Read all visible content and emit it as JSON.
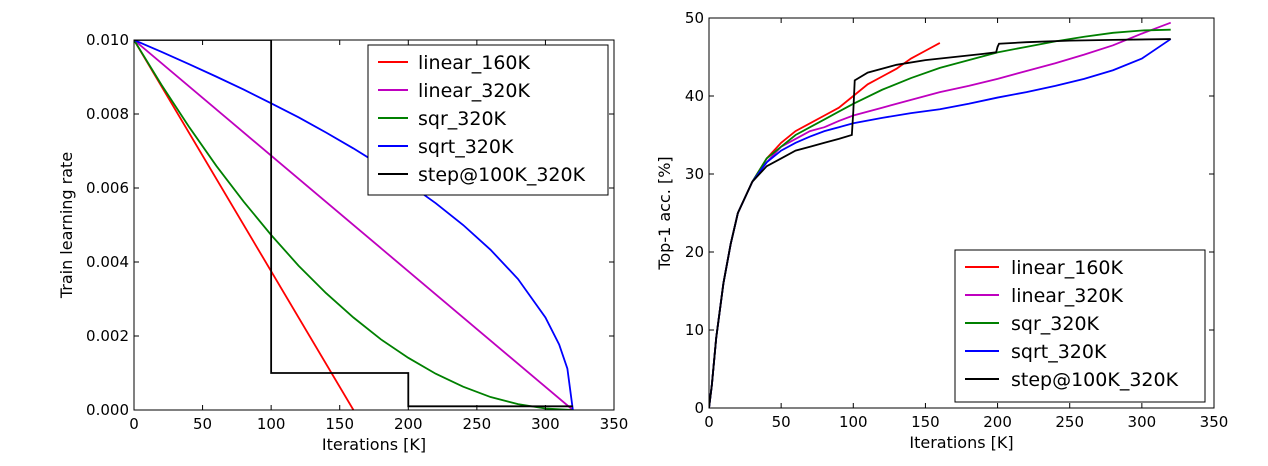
{
  "chart_data": [
    {
      "type": "line",
      "xlabel": "Iterations [K]",
      "ylabel": "Train learning rate",
      "xlim": [
        0,
        350
      ],
      "ylim": [
        0,
        0.01
      ],
      "xticks": [
        0,
        50,
        100,
        150,
        200,
        250,
        300,
        350
      ],
      "yticks": [
        0.0,
        0.002,
        0.004,
        0.006,
        0.008,
        0.01
      ],
      "xtick_labels": [
        "0",
        "50",
        "100",
        "150",
        "200",
        "250",
        "300",
        "350"
      ],
      "ytick_labels": [
        "0.000",
        "0.002",
        "0.004",
        "0.006",
        "0.008",
        "0.010"
      ],
      "grid": false,
      "legend_position": "top-right",
      "series": [
        {
          "name": "linear_160K",
          "color": "#ff0000",
          "x": [
            0,
            160
          ],
          "y": [
            0.01,
            0.0
          ]
        },
        {
          "name": "linear_320K",
          "color": "#bf00bf",
          "x": [
            0,
            320
          ],
          "y": [
            0.01,
            0.0
          ]
        },
        {
          "name": "sqr_320K",
          "color": "#008000",
          "x": [
            0,
            20,
            40,
            60,
            80,
            100,
            120,
            140,
            160,
            180,
            200,
            220,
            240,
            260,
            280,
            300,
            320
          ],
          "y": [
            0.01,
            0.00879,
            0.00766,
            0.0066,
            0.00563,
            0.00473,
            0.0039,
            0.00316,
            0.0025,
            0.00191,
            0.00141,
            0.00098,
            0.00063,
            0.00035,
            0.00016,
            4e-05,
            0.0
          ]
        },
        {
          "name": "sqrt_320K",
          "color": "#0000ff",
          "x": [
            0,
            20,
            40,
            60,
            80,
            100,
            120,
            140,
            160,
            180,
            200,
            220,
            240,
            260,
            280,
            300,
            310,
            316,
            320
          ],
          "y": [
            0.01,
            0.00968,
            0.00935,
            0.00901,
            0.00866,
            0.00829,
            0.00791,
            0.0075,
            0.00707,
            0.00661,
            0.00612,
            0.00559,
            0.005,
            0.00433,
            0.00354,
            0.0025,
            0.00177,
            0.00112,
            0.0
          ]
        },
        {
          "name": "step@100K_320K",
          "color": "#000000",
          "x": [
            0,
            100,
            100,
            200,
            200,
            320
          ],
          "y": [
            0.01,
            0.01,
            0.001,
            0.001,
            0.0001,
            0.0001
          ]
        }
      ]
    },
    {
      "type": "line",
      "xlabel": "Iterations [K]",
      "ylabel": "Top-1 acc. [%]",
      "xlim": [
        0,
        350
      ],
      "ylim": [
        0,
        50
      ],
      "xticks": [
        0,
        50,
        100,
        150,
        200,
        250,
        300,
        350
      ],
      "yticks": [
        0,
        10,
        20,
        30,
        40,
        50
      ],
      "xtick_labels": [
        "0",
        "50",
        "100",
        "150",
        "200",
        "250",
        "300",
        "350"
      ],
      "ytick_labels": [
        "0",
        "10",
        "20",
        "30",
        "40",
        "50"
      ],
      "grid": false,
      "legend_position": "bottom-right",
      "series": [
        {
          "name": "linear_160K",
          "color": "#ff0000",
          "x": [
            0,
            2,
            5,
            10,
            15,
            20,
            30,
            40,
            50,
            60,
            70,
            80,
            90,
            100,
            110,
            120,
            130,
            140,
            150,
            160
          ],
          "y": [
            0,
            3,
            9,
            16,
            21,
            25,
            29,
            32,
            34,
            35.5,
            36.5,
            37.5,
            38.5,
            40,
            41.5,
            42.5,
            43.5,
            44.8,
            45.8,
            46.8
          ]
        },
        {
          "name": "linear_320K",
          "color": "#bf00bf",
          "x": [
            0,
            2,
            5,
            10,
            15,
            20,
            30,
            40,
            50,
            60,
            70,
            80,
            90,
            100,
            120,
            140,
            160,
            180,
            200,
            220,
            240,
            260,
            280,
            300,
            320
          ],
          "y": [
            0,
            3,
            9,
            16,
            21,
            25,
            29,
            31.5,
            33.5,
            34.5,
            35.5,
            36,
            36.8,
            37.5,
            38.5,
            39.5,
            40.5,
            41.3,
            42.2,
            43.2,
            44.2,
            45.3,
            46.5,
            48,
            49.4
          ]
        },
        {
          "name": "sqr_320K",
          "color": "#008000",
          "x": [
            0,
            2,
            5,
            10,
            15,
            20,
            30,
            40,
            50,
            60,
            70,
            80,
            90,
            100,
            120,
            140,
            160,
            180,
            200,
            220,
            240,
            260,
            280,
            300,
            320
          ],
          "y": [
            0,
            3,
            9,
            16,
            21,
            25,
            29,
            32,
            33.5,
            35,
            36,
            37,
            38,
            39,
            40.8,
            42.3,
            43.6,
            44.6,
            45.6,
            46.3,
            47,
            47.6,
            48.1,
            48.4,
            48.5
          ]
        },
        {
          "name": "sqrt_320K",
          "color": "#0000ff",
          "x": [
            0,
            2,
            5,
            10,
            15,
            20,
            30,
            40,
            50,
            60,
            70,
            80,
            90,
            100,
            120,
            140,
            160,
            180,
            200,
            220,
            240,
            260,
            280,
            300,
            320
          ],
          "y": [
            0,
            3,
            9,
            16,
            21,
            25,
            29,
            31.5,
            33,
            34,
            34.8,
            35.5,
            36,
            36.5,
            37.2,
            37.8,
            38.3,
            39,
            39.8,
            40.5,
            41.3,
            42.2,
            43.3,
            44.8,
            47.3
          ]
        },
        {
          "name": "step@100K_320K",
          "color": "#000000",
          "x": [
            0,
            2,
            5,
            10,
            15,
            20,
            30,
            40,
            50,
            60,
            70,
            80,
            90,
            99,
            100,
            101,
            110,
            130,
            150,
            170,
            190,
            199,
            200,
            201,
            220,
            250,
            280,
            320
          ],
          "y": [
            0,
            3,
            9,
            16,
            21,
            25,
            29,
            31,
            32,
            33,
            33.5,
            34,
            34.5,
            35,
            38,
            42,
            43,
            44,
            44.6,
            45,
            45.4,
            45.6,
            46.3,
            46.7,
            46.9,
            47.1,
            47.2,
            47.3
          ]
        }
      ]
    }
  ]
}
